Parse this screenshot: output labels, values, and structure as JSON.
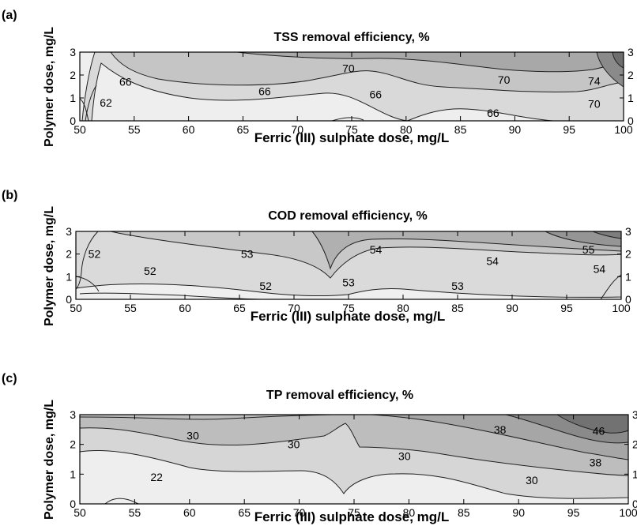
{
  "chart_data": [
    {
      "type": "contour",
      "panel_label": "(a)",
      "title": "TSS removal efficiency, %",
      "xlabel": "Ferric (III) sulphate dose, mg/L",
      "ylabel": "Polymer dose, mg/L",
      "xlim": [
        50,
        100
      ],
      "ylim": [
        0,
        3
      ],
      "xticks": [
        "50",
        "55",
        "60",
        "65",
        "70",
        "75",
        "80",
        "85",
        "90",
        "95",
        "100"
      ],
      "yticks": [
        "0",
        "1",
        "2",
        "3"
      ],
      "contour_labels": [
        {
          "text": "62",
          "x": 52.4,
          "y": 0.8
        },
        {
          "text": "66",
          "x": 54.2,
          "y": 1.7
        },
        {
          "text": "66",
          "x": 67.0,
          "y": 1.3
        },
        {
          "text": "70",
          "x": 74.7,
          "y": 2.3
        },
        {
          "text": "66",
          "x": 77.2,
          "y": 1.15
        },
        {
          "text": "70",
          "x": 89.0,
          "y": 1.8
        },
        {
          "text": "66",
          "x": 88.0,
          "y": 0.35
        },
        {
          "text": "74",
          "x": 97.3,
          "y": 1.75
        },
        {
          "text": "70",
          "x": 97.3,
          "y": 0.75
        }
      ]
    },
    {
      "type": "contour",
      "panel_label": "(b)",
      "title": "COD removal efficiency, %",
      "xlabel": "Ferric (III) sulphate dose, mg/L",
      "ylabel": "Polymer dose, mg/L",
      "xlim": [
        50,
        100
      ],
      "ylim": [
        0,
        3
      ],
      "xticks": [
        "50",
        "55",
        "60",
        "65",
        "70",
        "75",
        "80",
        "85",
        "90",
        "95",
        "100"
      ],
      "yticks": [
        "0",
        "1",
        "2",
        "3"
      ],
      "contour_labels": [
        {
          "text": "52",
          "x": 51.7,
          "y": 2.0
        },
        {
          "text": "52",
          "x": 56.8,
          "y": 1.25
        },
        {
          "text": "53",
          "x": 65.7,
          "y": 2.0
        },
        {
          "text": "52",
          "x": 67.4,
          "y": 0.6
        },
        {
          "text": "54",
          "x": 77.5,
          "y": 2.2
        },
        {
          "text": "53",
          "x": 75.0,
          "y": 0.75
        },
        {
          "text": "54",
          "x": 88.2,
          "y": 1.7
        },
        {
          "text": "53",
          "x": 85.0,
          "y": 0.6
        },
        {
          "text": "55",
          "x": 97.0,
          "y": 2.2
        },
        {
          "text": "54",
          "x": 98.0,
          "y": 1.35
        }
      ]
    },
    {
      "type": "contour",
      "panel_label": "(c)",
      "title": "TP removal efficiency, %",
      "xlabel": "Ferric (III) sulphate dose, mg/L",
      "ylabel": "Polymer dose, mg/L",
      "xlim": [
        50,
        100
      ],
      "ylim": [
        0,
        3
      ],
      "xticks": [
        "50",
        "55",
        "60",
        "65",
        "70",
        "75",
        "80",
        "85",
        "90",
        "95",
        "100"
      ],
      "yticks": [
        "0",
        "1",
        "2",
        "3"
      ],
      "contour_labels": [
        {
          "text": "30",
          "x": 60.3,
          "y": 2.3
        },
        {
          "text": "30",
          "x": 69.5,
          "y": 2.0
        },
        {
          "text": "22",
          "x": 57.0,
          "y": 0.9
        },
        {
          "text": "30",
          "x": 79.6,
          "y": 1.6
        },
        {
          "text": "38",
          "x": 88.3,
          "y": 2.5
        },
        {
          "text": "30",
          "x": 91.2,
          "y": 0.8
        },
        {
          "text": "46",
          "x": 97.3,
          "y": 2.45
        },
        {
          "text": "38",
          "x": 97.0,
          "y": 1.4
        }
      ]
    }
  ]
}
